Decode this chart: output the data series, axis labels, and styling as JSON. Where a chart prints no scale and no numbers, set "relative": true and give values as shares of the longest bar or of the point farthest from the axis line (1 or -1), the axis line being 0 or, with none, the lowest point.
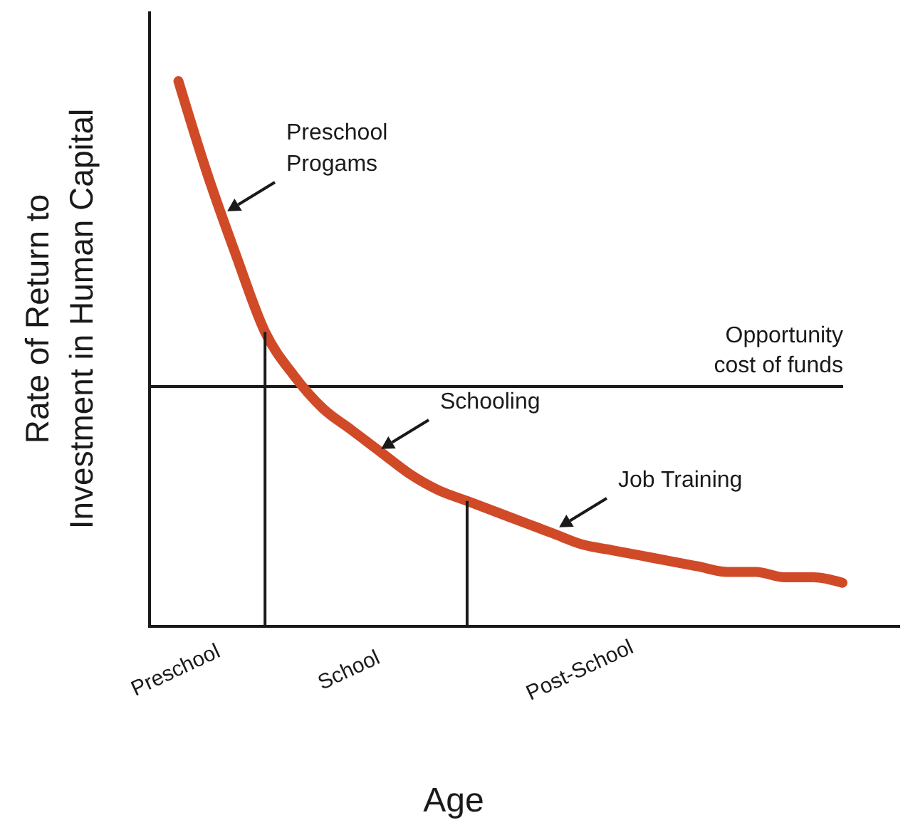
{
  "chart_data": {
    "type": "line",
    "relative": true,
    "xlabel": "Age",
    "ylabel": "Rate of Return to Investment in Human Capital",
    "categories": [
      null,
      "Preschool",
      null,
      null,
      null,
      null,
      null,
      "School",
      null,
      null,
      null,
      null,
      null,
      null,
      null,
      "Post-School",
      null,
      null,
      null,
      null,
      null,
      null,
      null,
      null,
      null,
      null,
      null
    ],
    "series": [
      {
        "color": "#d04a28",
        "values": [
          null,
          1,
          0.83,
          0.68,
          0.54,
          0.46,
          0.4,
          0.36,
          0.32,
          0.28,
          0.25,
          0.23,
          0.21,
          0.19,
          0.17,
          0.15,
          0.14,
          0.13,
          0.12,
          0.11,
          0.1,
          0.1,
          0.09,
          0.09,
          0.08,
          null,
          null
        ]
      },
      {
        "type": "bar",
        "color": "#1a1a1a",
        "values": [
          null,
          null,
          null,
          null,
          0.54,
          null,
          null,
          null,
          null,
          null,
          null,
          0.23,
          null,
          null,
          null,
          null,
          null,
          null,
          null,
          null,
          null,
          null,
          null,
          null,
          null,
          null,
          null
        ]
      }
    ],
    "ref_lines": [
      {
        "axis": "y",
        "value": 0.44,
        "label": "Opportunity cost of funds",
        "color": "#1a1a1a"
      }
    ],
    "annotations": [
      "Preschool Progams",
      "Schooling",
      "Job Training"
    ]
  }
}
